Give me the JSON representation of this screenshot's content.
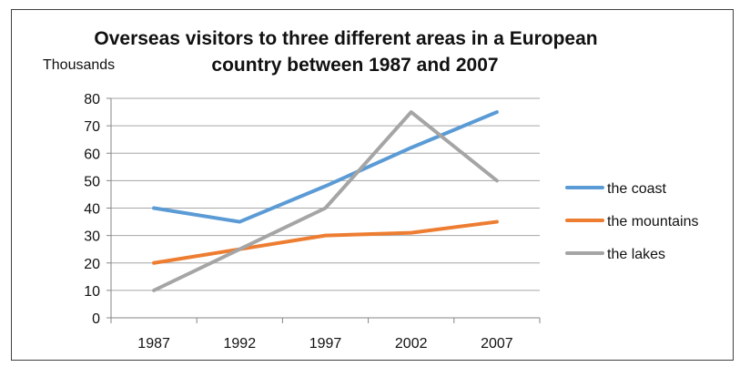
{
  "chart_data": {
    "type": "line",
    "title_lines": [
      "Overseas visitors to three different areas in a European",
      "country between 1987 and 2007"
    ],
    "ylabel": "Thousands",
    "xlabel": "",
    "categories": [
      "1987",
      "1992",
      "1997",
      "2002",
      "2007"
    ],
    "ylim": [
      0,
      80
    ],
    "yticks": [
      0,
      10,
      20,
      30,
      40,
      50,
      60,
      70,
      80
    ],
    "grid": true,
    "legend_position": "right",
    "series": [
      {
        "name": "the coast",
        "color": "#5b9bd5",
        "values": [
          40,
          35,
          48,
          62,
          75
        ]
      },
      {
        "name": "the mountains",
        "color": "#ed7d31",
        "values": [
          20,
          25,
          30,
          31,
          35
        ]
      },
      {
        "name": "the lakes",
        "color": "#a5a5a5",
        "values": [
          10,
          25,
          40,
          75,
          50
        ]
      }
    ]
  }
}
